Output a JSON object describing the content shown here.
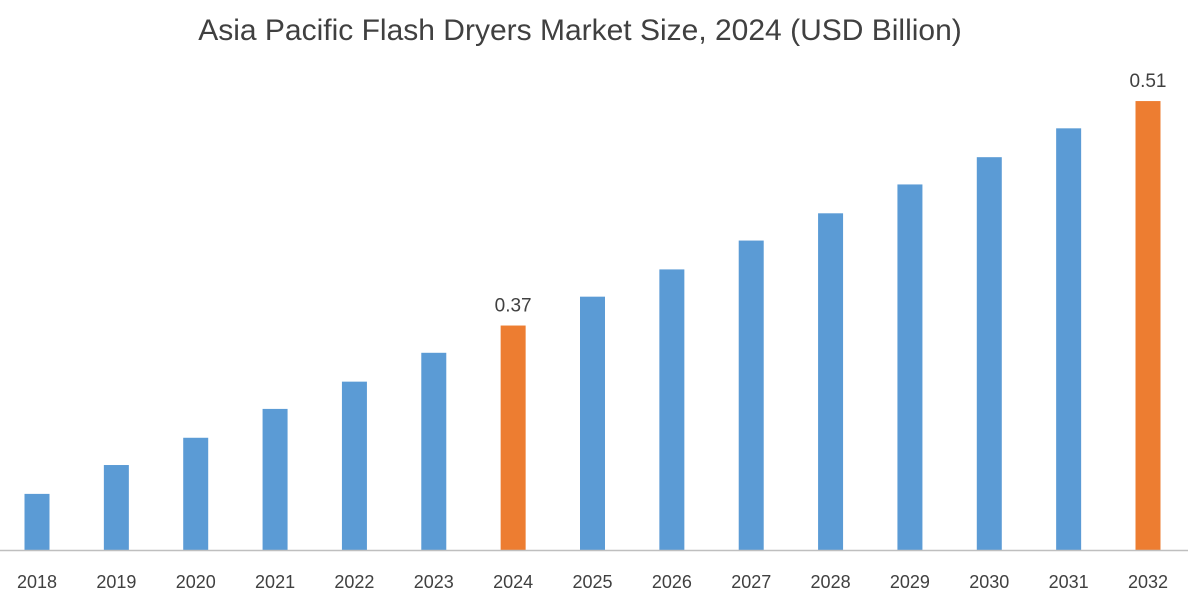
{
  "chart_data": {
    "type": "bar",
    "title": "Asia Pacific Flash Dryers Market Size, 2024 (USD Billion)",
    "xlabel": "",
    "ylabel": "",
    "categories": [
      "2018",
      "2019",
      "2020",
      "2021",
      "2022",
      "2023",
      "2024",
      "2025",
      "2026",
      "2027",
      "2028",
      "2029",
      "2030",
      "2031",
      "2032"
    ],
    "values": [
      0.265,
      0.283,
      0.3,
      0.318,
      0.335,
      0.353,
      0.37,
      0.388,
      0.405,
      0.423,
      0.44,
      0.458,
      0.475,
      0.493,
      0.51
    ],
    "data_labels": {
      "2024": "0.37",
      "2032": "0.51"
    },
    "highlighted": [
      "2024",
      "2032"
    ],
    "ylim": [
      0.23,
      0.53
    ],
    "grid": false,
    "legend": "none",
    "colors": {
      "default": "#5B9BD5",
      "highlight": "#ED7D31",
      "axis": "#BFBFBF"
    }
  }
}
